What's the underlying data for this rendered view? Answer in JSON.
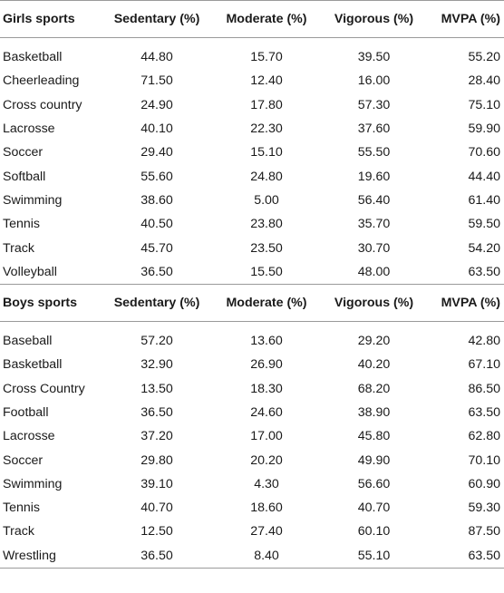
{
  "columns": [
    "Sedentary (%)",
    "Moderate (%)",
    "Vigorous (%)",
    "MVPA (%)"
  ],
  "sections": [
    {
      "header": "Girls sports",
      "rows": [
        [
          "Basketball",
          "44.80",
          "15.70",
          "39.50",
          "55.20"
        ],
        [
          "Cheerleading",
          "71.50",
          "12.40",
          "16.00",
          "28.40"
        ],
        [
          "Cross country",
          "24.90",
          "17.80",
          "57.30",
          "75.10"
        ],
        [
          "Lacrosse",
          "40.10",
          "22.30",
          "37.60",
          "59.90"
        ],
        [
          "Soccer",
          "29.40",
          "15.10",
          "55.50",
          "70.60"
        ],
        [
          "Softball",
          "55.60",
          "24.80",
          "19.60",
          "44.40"
        ],
        [
          "Swimming",
          "38.60",
          "5.00",
          "56.40",
          "61.40"
        ],
        [
          "Tennis",
          "40.50",
          "23.80",
          "35.70",
          "59.50"
        ],
        [
          "Track",
          "45.70",
          "23.50",
          "30.70",
          "54.20"
        ],
        [
          "Volleyball",
          "36.50",
          "15.50",
          "48.00",
          "63.50"
        ]
      ]
    },
    {
      "header": "Boys sports",
      "rows": [
        [
          "Baseball",
          "57.20",
          "13.60",
          "29.20",
          "42.80"
        ],
        [
          "Basketball",
          "32.90",
          "26.90",
          "40.20",
          "67.10"
        ],
        [
          "Cross Country",
          "13.50",
          "18.30",
          "68.20",
          "86.50"
        ],
        [
          "Football",
          "36.50",
          "24.60",
          "38.90",
          "63.50"
        ],
        [
          "Lacrosse",
          "37.20",
          "17.00",
          "45.80",
          "62.80"
        ],
        [
          "Soccer",
          "29.80",
          "20.20",
          "49.90",
          "70.10"
        ],
        [
          "Swimming",
          "39.10",
          "4.30",
          "56.60",
          "60.90"
        ],
        [
          "Tennis",
          "40.70",
          "18.60",
          "40.70",
          "59.30"
        ],
        [
          "Track",
          "12.50",
          "27.40",
          "60.10",
          "87.50"
        ],
        [
          "Wrestling",
          "36.50",
          "8.40",
          "55.10",
          "63.50"
        ]
      ]
    }
  ]
}
